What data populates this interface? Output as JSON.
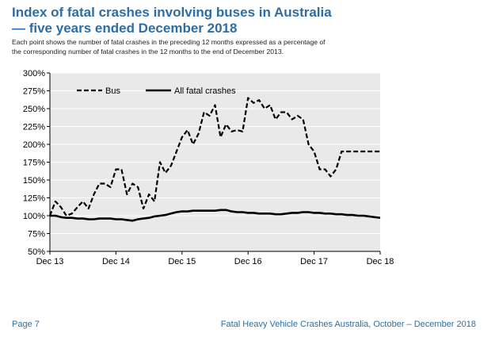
{
  "header": {
    "title_line1": "Index of fatal crashes involving buses in Australia",
    "title_line2": "— five years ended December 2018",
    "description_line1": "Each point shows the number of fatal crashes in the preceding 12 months expressed as a percentage of",
    "description_line2": "the corresponding number of fatal crashes in the 12 months to the end of December 2013."
  },
  "footer": {
    "page": "Page 7",
    "publication": "Fatal Heavy Vehicle Crashes Australia, October – December 2018"
  },
  "colors": {
    "title": "#2e6da4",
    "plot_background": "#e9e9e9",
    "series": "#000000"
  },
  "chart_data": {
    "type": "line",
    "title": "",
    "xlabel": "",
    "ylabel": "",
    "x_ticks": [
      "Dec 13",
      "Dec 14",
      "Dec 15",
      "Dec 16",
      "Dec 17",
      "Dec 18"
    ],
    "x_range": [
      0,
      60
    ],
    "y_ticks": [
      "50%",
      "75%",
      "100%",
      "125%",
      "150%",
      "175%",
      "200%",
      "225%",
      "250%",
      "275%",
      "300%"
    ],
    "ylim": [
      50,
      300
    ],
    "grid": "horizontal",
    "legend_position": "top-left",
    "series": [
      {
        "name": "Bus",
        "style": "dashed",
        "x": [
          0,
          1,
          2,
          3,
          4,
          5,
          6,
          7,
          8,
          9,
          10,
          11,
          12,
          13,
          14,
          15,
          16,
          17,
          18,
          19,
          20,
          21,
          22,
          23,
          24,
          25,
          26,
          27,
          28,
          29,
          30,
          31,
          32,
          33,
          34,
          35,
          36,
          37,
          38,
          39,
          40,
          41,
          42,
          43,
          44,
          45,
          46,
          47,
          48,
          49,
          50,
          51,
          52,
          53,
          54,
          55,
          56,
          57,
          58,
          59,
          60
        ],
        "values": [
          100,
          120,
          112,
          100,
          103,
          112,
          120,
          110,
          130,
          145,
          145,
          140,
          165,
          165,
          130,
          145,
          140,
          110,
          130,
          120,
          175,
          160,
          170,
          190,
          210,
          220,
          200,
          215,
          245,
          240,
          255,
          210,
          228,
          218,
          220,
          218,
          265,
          258,
          262,
          250,
          255,
          235,
          245,
          245,
          235,
          240,
          235,
          200,
          190,
          165,
          165,
          155,
          165,
          190,
          190,
          190,
          190,
          190,
          190,
          190,
          190
        ]
      },
      {
        "name": "All fatal crashes",
        "style": "solid",
        "x": [
          0,
          1,
          2,
          3,
          4,
          5,
          6,
          7,
          8,
          9,
          10,
          11,
          12,
          13,
          14,
          15,
          16,
          17,
          18,
          19,
          20,
          21,
          22,
          23,
          24,
          25,
          26,
          27,
          28,
          29,
          30,
          31,
          32,
          33,
          34,
          35,
          36,
          37,
          38,
          39,
          40,
          41,
          42,
          43,
          44,
          45,
          46,
          47,
          48,
          49,
          50,
          51,
          52,
          53,
          54,
          55,
          56,
          57,
          58,
          59,
          60
        ],
        "values": [
          100,
          100,
          98,
          97,
          97,
          96,
          96,
          95,
          95,
          96,
          96,
          96,
          95,
          95,
          94,
          93,
          95,
          96,
          97,
          99,
          100,
          101,
          103,
          105,
          106,
          106,
          107,
          107,
          107,
          107,
          107,
          108,
          108,
          106,
          105,
          105,
          104,
          104,
          103,
          103,
          103,
          102,
          102,
          103,
          104,
          104,
          105,
          105,
          104,
          104,
          103,
          103,
          102,
          102,
          101,
          101,
          100,
          100,
          99,
          98,
          97
        ]
      }
    ]
  }
}
